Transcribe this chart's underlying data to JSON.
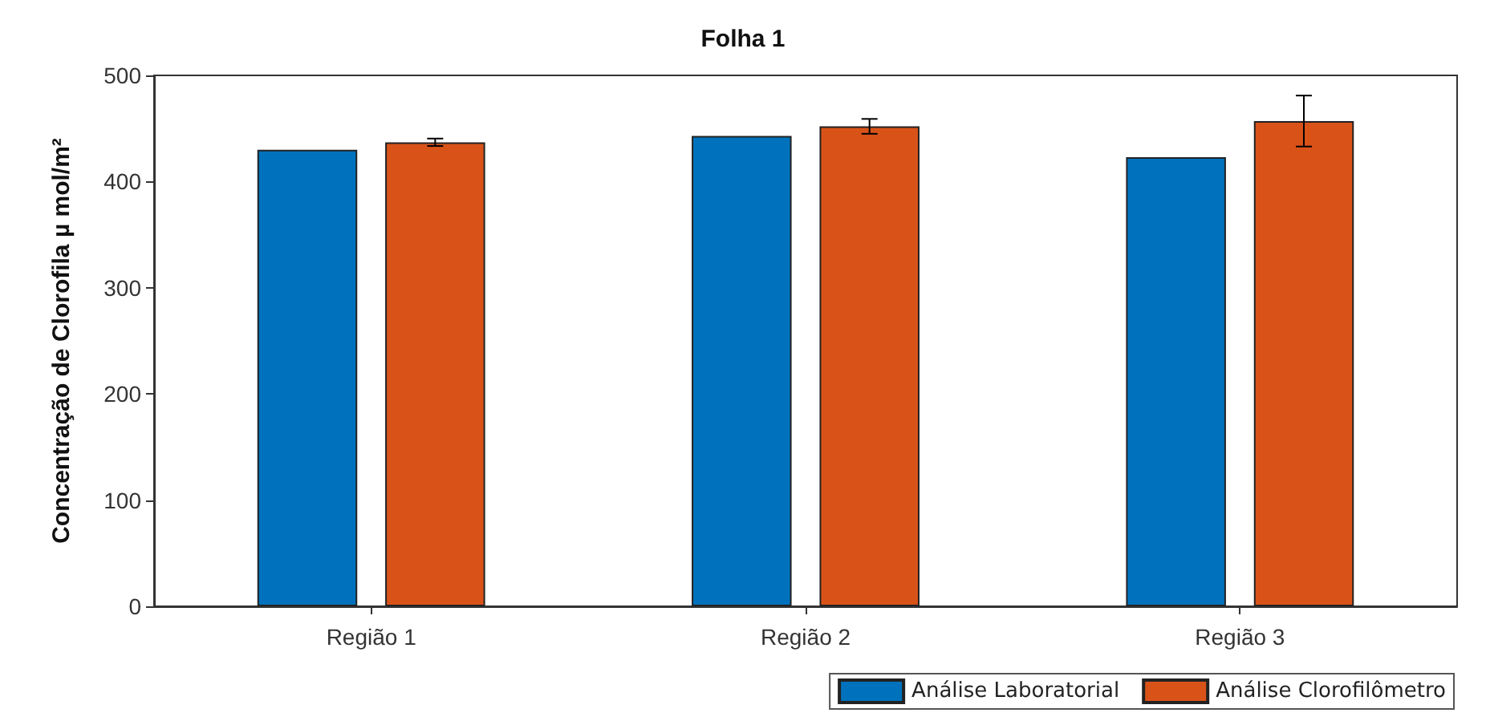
{
  "chart_data": {
    "type": "bar",
    "title": "Folha 1",
    "ylabel": "Concentração de Clorofila µ mol/m²",
    "categories": [
      "Região 1",
      "Região 2",
      "Região 3"
    ],
    "series": [
      {
        "name": "Análise Laboratorial",
        "color": "#0072bd",
        "values": [
          430,
          443,
          423
        ]
      },
      {
        "name": "Análise Clorofilômetro",
        "color": "#d95319",
        "values": [
          437,
          452,
          457
        ],
        "errors": [
          3.5,
          7,
          24
        ]
      }
    ],
    "ylim": [
      0,
      500
    ],
    "yticks": [
      0,
      100,
      200,
      300,
      400,
      500
    ],
    "grid": false,
    "legend": "bottom right"
  }
}
